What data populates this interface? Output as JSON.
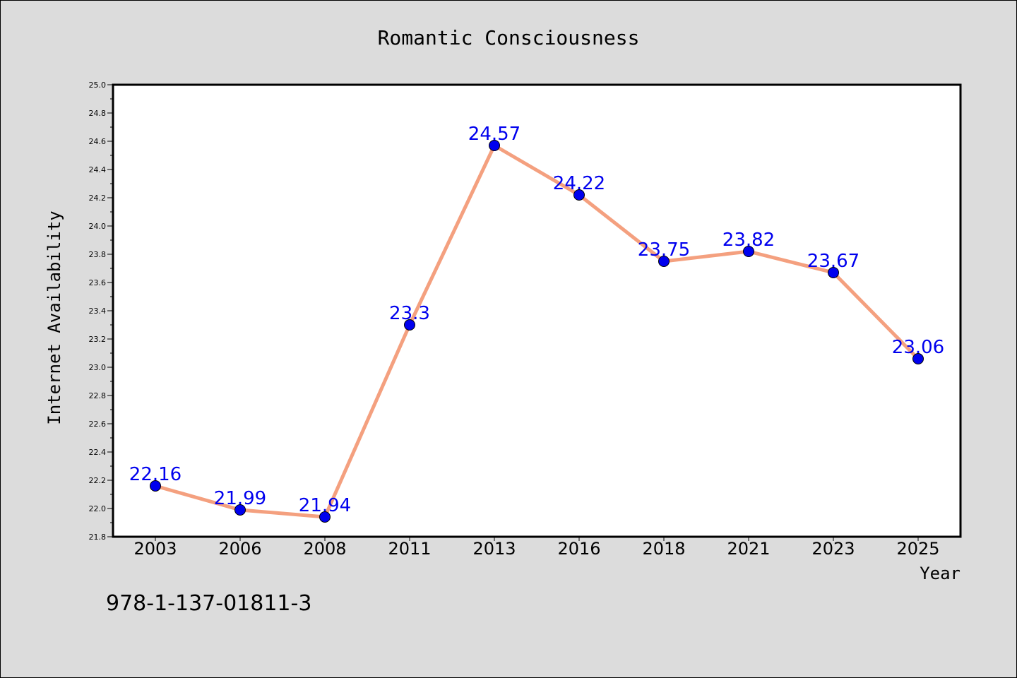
{
  "chart_data": {
    "type": "line",
    "title": "Romantic Consciousness",
    "xlabel": "Year",
    "ylabel": "Internet Availability",
    "categories": [
      "2003",
      "2006",
      "2008",
      "2011",
      "2013",
      "2016",
      "2018",
      "2021",
      "2023",
      "2025"
    ],
    "series": [
      {
        "values": [
          22.16,
          21.99,
          21.94,
          23.3,
          24.57,
          24.22,
          23.75,
          23.82,
          23.67,
          23.06
        ],
        "labels": [
          "22.16",
          "21.99",
          "21.94",
          "23.3",
          "24.57",
          "24.22",
          "23.75",
          "23.82",
          "23.67",
          "23.06"
        ]
      }
    ],
    "ylim": [
      21.8,
      25.0
    ],
    "yticks": [
      "21.8",
      "22.0",
      "22.2",
      "22.4",
      "22.6",
      "22.8",
      "23.0",
      "23.2",
      "23.4",
      "23.6",
      "23.8",
      "24.0",
      "24.2",
      "24.4",
      "24.6",
      "24.8",
      "25.0"
    ],
    "grid": false,
    "colors": {
      "line": "#f4a07f",
      "marker": "#0000ee",
      "data_label": "#0000ee"
    }
  },
  "footer": {
    "isbn": "978-1-137-01811-3"
  }
}
